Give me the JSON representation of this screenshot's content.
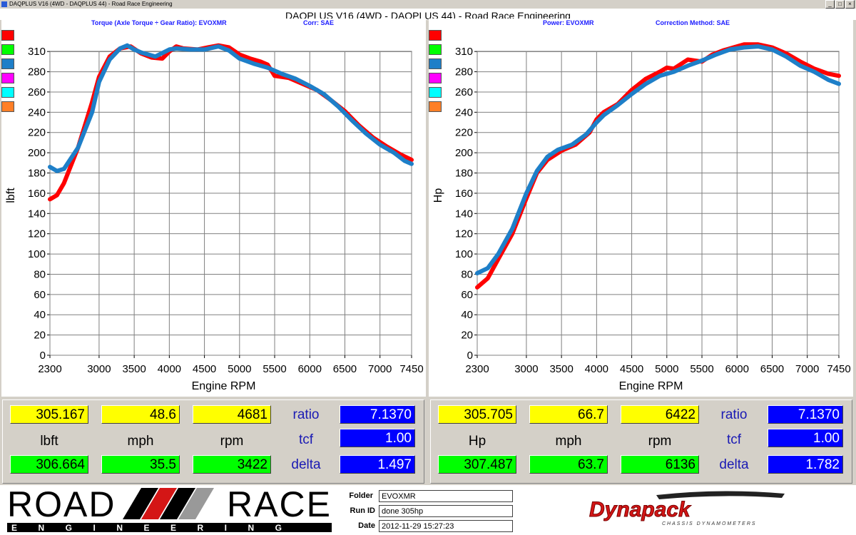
{
  "window": {
    "title": "DAQPLUS V16 (4WD - DAQPLUS 44) - Road Race Engineering",
    "minimize_label": "_",
    "maximize_label": "□",
    "close_label": "×"
  },
  "main_title": "DAQPLUS V16 (4WD - DAQPLUS 44) - Road Race Engineering",
  "left_panel": {
    "subtitle_left": "Torque (Axle Torque ÷ Gear Ratio): EVOXMR",
    "subtitle_right": "Corr: SAE",
    "swatch_colors": [
      "#ff0000",
      "#00ff00",
      "#1e7fc8",
      "#ff00ff",
      "#00ffff",
      "#ff7f27"
    ]
  },
  "right_panel": {
    "subtitle_left": "Power: EVOXMR",
    "subtitle_right": "Correction Method: SAE",
    "swatch_colors": [
      "#ff0000",
      "#00ff00",
      "#1e7fc8",
      "#ff00ff",
      "#00ffff",
      "#ff7f27"
    ]
  },
  "chart_data": [
    {
      "type": "line",
      "title": "",
      "xlabel": "Engine RPM",
      "ylabel": "lbft",
      "xlim": [
        2300,
        7450
      ],
      "ylim": [
        0,
        310
      ],
      "x_ticks": [
        2300,
        3000,
        3500,
        4000,
        4500,
        5000,
        5500,
        6000,
        6500,
        7000,
        7450
      ],
      "y_ticks": [
        0,
        20,
        40,
        60,
        80,
        100,
        120,
        140,
        160,
        180,
        200,
        220,
        240,
        260,
        280,
        310
      ],
      "grid": true,
      "series": [
        {
          "color": "#ff0000",
          "points": [
            [
              2300,
              154
            ],
            [
              2400,
              158
            ],
            [
              2500,
              170
            ],
            [
              2700,
              205
            ],
            [
              2900,
              250
            ],
            [
              3000,
              275
            ],
            [
              3150,
              295
            ],
            [
              3300,
              303
            ],
            [
              3450,
              305
            ],
            [
              3600,
              298
            ],
            [
              3750,
              294
            ],
            [
              3900,
              293
            ],
            [
              4000,
              300
            ],
            [
              4100,
              305
            ],
            [
              4200,
              303
            ],
            [
              4400,
              302
            ],
            [
              4550,
              304
            ],
            [
              4700,
              306
            ],
            [
              4850,
              304
            ],
            [
              5000,
              297
            ],
            [
              5150,
              293
            ],
            [
              5300,
              290
            ],
            [
              5400,
              287
            ],
            [
              5500,
              276
            ],
            [
              5700,
              274
            ],
            [
              5900,
              268
            ],
            [
              6100,
              262
            ],
            [
              6300,
              252
            ],
            [
              6500,
              241
            ],
            [
              6700,
              227
            ],
            [
              6900,
              215
            ],
            [
              7100,
              206
            ],
            [
              7300,
              198
            ],
            [
              7450,
              193
            ]
          ]
        },
        {
          "color": "#1e7fc8",
          "points": [
            [
              2300,
              186
            ],
            [
              2400,
              182
            ],
            [
              2500,
              184
            ],
            [
              2700,
              205
            ],
            [
              2900,
              240
            ],
            [
              3000,
              270
            ],
            [
              3150,
              292
            ],
            [
              3300,
              303
            ],
            [
              3400,
              306
            ],
            [
              3500,
              302
            ],
            [
              3600,
              299
            ],
            [
              3800,
              295
            ],
            [
              4000,
              302
            ],
            [
              4100,
              303
            ],
            [
              4300,
              302
            ],
            [
              4500,
              302
            ],
            [
              4700,
              305
            ],
            [
              4850,
              301
            ],
            [
              5000,
              293
            ],
            [
              5200,
              288
            ],
            [
              5400,
              284
            ],
            [
              5600,
              278
            ],
            [
              5800,
              273
            ],
            [
              6000,
              266
            ],
            [
              6200,
              258
            ],
            [
              6400,
              246
            ],
            [
              6600,
              232
            ],
            [
              6800,
              219
            ],
            [
              7000,
              208
            ],
            [
              7200,
              200
            ],
            [
              7350,
              192
            ],
            [
              7450,
              189
            ]
          ]
        }
      ]
    },
    {
      "type": "line",
      "title": "",
      "xlabel": "Engine RPM",
      "ylabel": "Hp",
      "xlim": [
        2300,
        7450
      ],
      "ylim": [
        0,
        310
      ],
      "x_ticks": [
        2300,
        3000,
        3500,
        4000,
        4500,
        5000,
        5500,
        6000,
        6500,
        7000,
        7450
      ],
      "y_ticks": [
        0,
        20,
        40,
        60,
        80,
        100,
        120,
        140,
        160,
        180,
        200,
        220,
        240,
        260,
        280,
        310
      ],
      "grid": true,
      "series": [
        {
          "color": "#ff0000",
          "points": [
            [
              2300,
              67
            ],
            [
              2450,
              76
            ],
            [
              2600,
              95
            ],
            [
              2800,
              120
            ],
            [
              3000,
              155
            ],
            [
              3150,
              180
            ],
            [
              3300,
              193
            ],
            [
              3500,
              202
            ],
            [
              3700,
              208
            ],
            [
              3900,
              220
            ],
            [
              4000,
              233
            ],
            [
              4100,
              240
            ],
            [
              4300,
              248
            ],
            [
              4500,
              262
            ],
            [
              4700,
              273
            ],
            [
              4900,
              280
            ],
            [
              5000,
              284
            ],
            [
              5100,
              283
            ],
            [
              5300,
              292
            ],
            [
              5400,
              291
            ],
            [
              5500,
              290
            ],
            [
              5650,
              297
            ],
            [
              5800,
              301
            ],
            [
              5950,
              304
            ],
            [
              6100,
              307
            ],
            [
              6300,
              307
            ],
            [
              6500,
              304
            ],
            [
              6700,
              298
            ],
            [
              6900,
              290
            ],
            [
              7100,
              283
            ],
            [
              7300,
              278
            ],
            [
              7450,
              276
            ]
          ]
        },
        {
          "color": "#1e7fc8",
          "points": [
            [
              2300,
              81
            ],
            [
              2450,
              86
            ],
            [
              2600,
              100
            ],
            [
              2800,
              125
            ],
            [
              3000,
              160
            ],
            [
              3150,
              182
            ],
            [
              3300,
              196
            ],
            [
              3450,
              203
            ],
            [
              3650,
              208
            ],
            [
              3850,
              218
            ],
            [
              4000,
              230
            ],
            [
              4100,
              237
            ],
            [
              4300,
              247
            ],
            [
              4500,
              258
            ],
            [
              4700,
              268
            ],
            [
              4900,
              276
            ],
            [
              5100,
              280
            ],
            [
              5300,
              286
            ],
            [
              5500,
              291
            ],
            [
              5700,
              297
            ],
            [
              5900,
              302
            ],
            [
              6100,
              304
            ],
            [
              6300,
              305
            ],
            [
              6500,
              302
            ],
            [
              6700,
              295
            ],
            [
              6900,
              286
            ],
            [
              7100,
              280
            ],
            [
              7300,
              272
            ],
            [
              7450,
              268
            ]
          ]
        }
      ]
    }
  ],
  "left_readout": {
    "top": [
      "305.167",
      "48.6",
      "4681"
    ],
    "units": [
      "lbft",
      "mph",
      "rpm"
    ],
    "bottom": [
      "306.664",
      "35.5",
      "3422"
    ],
    "side_labels": [
      "ratio",
      "tcf",
      "delta"
    ],
    "side_values": [
      "7.1370",
      "1.00",
      "1.497"
    ]
  },
  "right_readout": {
    "top": [
      "305.705",
      "66.7",
      "6422"
    ],
    "units": [
      "Hp",
      "mph",
      "rpm"
    ],
    "bottom": [
      "307.487",
      "63.7",
      "6136"
    ],
    "side_labels": [
      "ratio",
      "tcf",
      "delta"
    ],
    "side_values": [
      "7.1370",
      "1.00",
      "1.782"
    ]
  },
  "footer": {
    "logo_top": "ROAD",
    "logo_race": "RACE",
    "logo_sub": "ENGINEERING",
    "labels": [
      "Folder",
      "Run ID",
      "Date"
    ],
    "values": [
      "EVOXMR",
      "done 305hp",
      "2012-11-29 15:27:23"
    ],
    "brand": "Dynapack",
    "brand_sub": "CHASSIS DYNAMOMETERS"
  }
}
